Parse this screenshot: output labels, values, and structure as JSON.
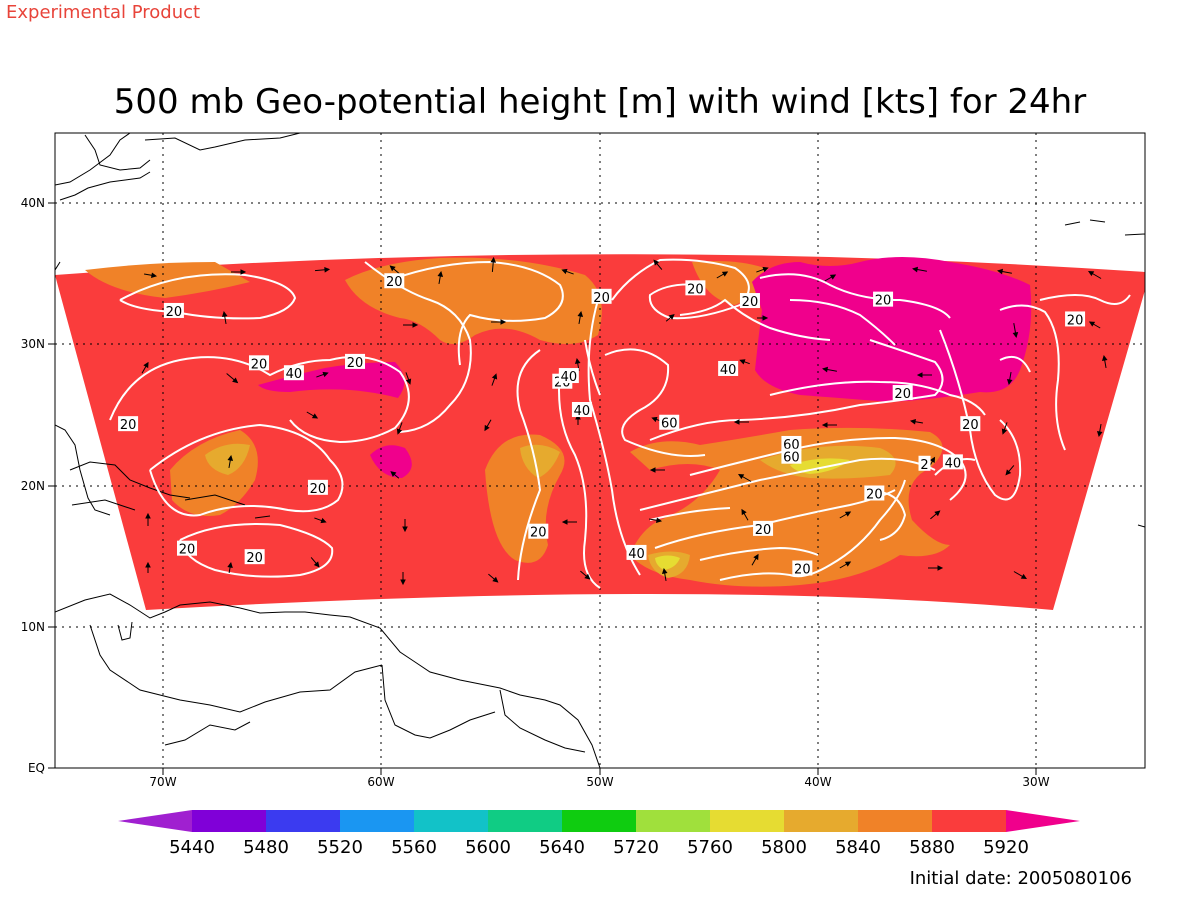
{
  "header": {
    "product_tag": "Experimental Product"
  },
  "map": {
    "title": "500 mb Geo-potential height [m] with wind [kts] for 24hr",
    "lon_labels": [
      "70W",
      "60W",
      "50W",
      "40W",
      "30W"
    ],
    "lat_labels": [
      "40N",
      "30N",
      "20N",
      "10N",
      "EQ"
    ],
    "contour_labels": [
      {
        "text": "20",
        "lon": -69.5,
        "lat": 32.3
      },
      {
        "text": "20",
        "lon": -65.6,
        "lat": 28.6
      },
      {
        "text": "20",
        "lon": -71.6,
        "lat": 24.3
      },
      {
        "text": "20",
        "lon": -59.4,
        "lat": 34.4
      },
      {
        "text": "20",
        "lon": -61.2,
        "lat": 28.7
      },
      {
        "text": "20",
        "lon": -51.7,
        "lat": 27.3
      },
      {
        "text": "20",
        "lon": -49.9,
        "lat": 33.3
      },
      {
        "text": "20",
        "lon": -45.6,
        "lat": 33.9
      },
      {
        "text": "20",
        "lon": -43.1,
        "lat": 33.0
      },
      {
        "text": "20",
        "lon": -37.0,
        "lat": 33.1
      },
      {
        "text": "20",
        "lon": -36.1,
        "lat": 26.5
      },
      {
        "text": "20",
        "lon": -33.0,
        "lat": 24.3
      },
      {
        "text": "20",
        "lon": -28.2,
        "lat": 31.7
      },
      {
        "text": "20",
        "lon": -62.9,
        "lat": 19.8
      },
      {
        "text": "20",
        "lon": -52.8,
        "lat": 16.7
      },
      {
        "text": "20",
        "lon": -68.9,
        "lat": 15.5
      },
      {
        "text": "20",
        "lon": -65.8,
        "lat": 14.9
      },
      {
        "text": "20",
        "lon": -42.5,
        "lat": 16.9
      },
      {
        "text": "20",
        "lon": -37.4,
        "lat": 19.4
      },
      {
        "text": "20",
        "lon": -40.7,
        "lat": 14.1
      },
      {
        "text": "40",
        "lon": -64.0,
        "lat": 27.9
      },
      {
        "text": "40",
        "lon": -51.4,
        "lat": 27.7
      },
      {
        "text": "40",
        "lon": -44.1,
        "lat": 28.2
      },
      {
        "text": "40",
        "lon": -50.8,
        "lat": 25.3
      },
      {
        "text": "40",
        "lon": -48.3,
        "lat": 15.2
      },
      {
        "text": "40",
        "lon": -33.8,
        "lat": 21.6
      },
      {
        "text": "60",
        "lon": -46.8,
        "lat": 24.4
      },
      {
        "text": "60",
        "lon": -41.2,
        "lat": 22.9
      },
      {
        "text": "60",
        "lon": -41.2,
        "lat": 22.0
      },
      {
        "text": "2",
        "lon": -35.1,
        "lat": 21.5
      }
    ]
  },
  "colorbar": {
    "ticks": [
      "5440",
      "5480",
      "5520",
      "5560",
      "5600",
      "5640",
      "5720",
      "5760",
      "5800",
      "5840",
      "5880",
      "5920"
    ],
    "colors": [
      "#a020d0",
      "#8000d8",
      "#3b3bf0",
      "#1a96f2",
      "#12c2c8",
      "#10cc84",
      "#0fcc10",
      "#a0e03c",
      "#e6dc32",
      "#e6aa2e",
      "#f08228",
      "#fa3c3c",
      "#f0008c"
    ]
  },
  "footer": {
    "initial_date": "Initial date: 2005080106"
  }
}
